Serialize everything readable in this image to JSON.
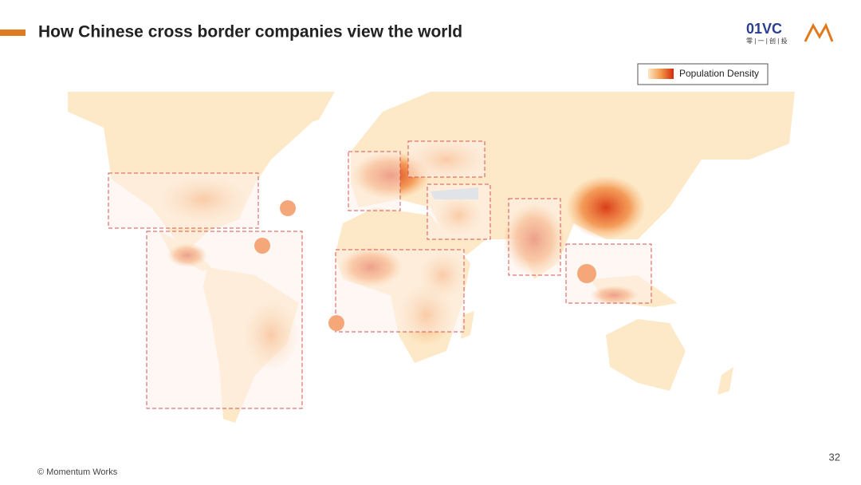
{
  "header": {
    "title": "How Chinese cross border companies view the world",
    "logo_text": "01VC",
    "logo_subtext": "零 | 一 | 创 | 投"
  },
  "legend": {
    "label": "Population Density"
  },
  "footer": {
    "copyright": "© Momentum Works",
    "page_number": "32"
  }
}
